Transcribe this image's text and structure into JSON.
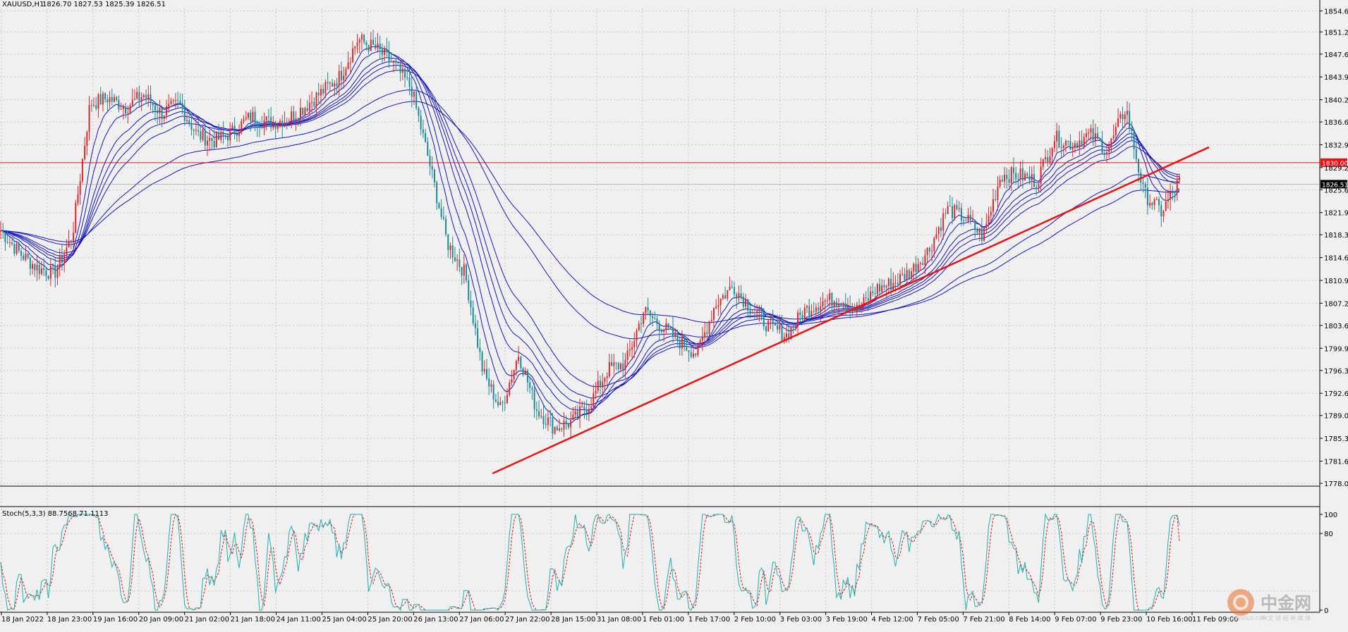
{
  "header": {
    "symbol": "XAUUSD,H1",
    "ohlc": "1826.70 1827.53 1825.39 1826.51"
  },
  "stoch_header": {
    "label": "Stoch(5,3,3) 88.7568 71.1113"
  },
  "watermark": {
    "logo_text": "中金网",
    "sub_text": "中 文 财 经 新 媒 体",
    "domain": "CNGOLD.COM"
  },
  "colors": {
    "background": "#f0f0f0",
    "grid": "#c9c9c9",
    "bull_candle": "#e0262a",
    "bear_candle": "#1a8a96",
    "ma_lines": "#1515c8",
    "trendline": "#ee1111",
    "hline": "#ee1111",
    "stoch_main": "#20b0b0",
    "stoch_signal": "#dd1111"
  },
  "chart_data": [
    {
      "type": "candlestick",
      "symbol": "XAUUSD",
      "timeframe": "H1",
      "ylim": [
        1778.0,
        1855.0
      ],
      "y_ticks": [
        "1854.60",
        "1851.20",
        "1847.60",
        "1843.90",
        "1840.20",
        "1836.60",
        "1832.90",
        "1829.20",
        "1825.60",
        "1821.90",
        "1818.30",
        "1814.60",
        "1810.90",
        "1807.20",
        "1803.60",
        "1799.90",
        "1796.30",
        "1792.60",
        "1789.00",
        "1785.30",
        "1781.60",
        "1778.00"
      ],
      "x_ticks": [
        "18 Jan 2022",
        "18 Jan 23:00",
        "19 Jan 16:00",
        "20 Jan 09:00",
        "21 Jan 02:00",
        "21 Jan 18:00",
        "24 Jan 11:00",
        "25 Jan 04:00",
        "25 Jan 20:00",
        "26 Jan 13:00",
        "27 Jan 06:00",
        "27 Jan 22:00",
        "28 Jan 15:00",
        "31 Jan 08:00",
        "1 Feb 01:00",
        "1 Feb 17:00",
        "2 Feb 10:00",
        "3 Feb 03:00",
        "3 Feb 19:00",
        "4 Feb 12:00",
        "7 Feb 05:00",
        "7 Feb 21:00",
        "8 Feb 14:00",
        "9 Feb 07:00",
        "9 Feb 23:00",
        "10 Feb 16:00",
        "11 Feb 09:00"
      ],
      "price_path": [
        1819.0,
        1815.5,
        1813.0,
        1812.0,
        1818.0,
        1839.5,
        1840.5,
        1839.0,
        1841.0,
        1838.0,
        1839.5,
        1834.5,
        1833.5,
        1835.0,
        1837.5,
        1836.5,
        1837.0,
        1839.0,
        1841.5,
        1844.0,
        1850.0,
        1848.5,
        1846.0,
        1842.0,
        1830.0,
        1817.0,
        1812.0,
        1796.0,
        1790.0,
        1799.0,
        1790.0,
        1787.0,
        1788.0,
        1791.0,
        1796.5,
        1797.5,
        1806.0,
        1803.5,
        1801.0,
        1799.0,
        1807.0,
        1810.0,
        1806.5,
        1803.5,
        1802.0,
        1806.0,
        1807.5,
        1808.0,
        1806.0,
        1809.5,
        1810.5,
        1812.5,
        1816.0,
        1822.5,
        1821.0,
        1818.0,
        1828.0,
        1828.0,
        1827.0,
        1834.0,
        1833.0,
        1834.5,
        1832.0,
        1839.0,
        1825.0,
        1822.0,
        1827.0
      ],
      "horizontal_line": {
        "value": 1830.0,
        "label": "1830.00"
      },
      "last_price": {
        "value": 1826.51,
        "label": "1826.51"
      },
      "trendline": {
        "from": {
          "x": "27 Jan 22:00",
          "y": 1779.6
        },
        "to": {
          "x": "11 Feb 09:00",
          "y": 1832.5
        }
      },
      "moving_averages": {
        "count": 8,
        "color": "blue"
      }
    },
    {
      "type": "line",
      "indicator": "Stochastic",
      "params": "5,3,3",
      "main": 88.7568,
      "signal": 71.1113,
      "ylim": [
        0,
        100
      ],
      "y_ticks": [
        "100",
        "80",
        "0"
      ]
    }
  ]
}
